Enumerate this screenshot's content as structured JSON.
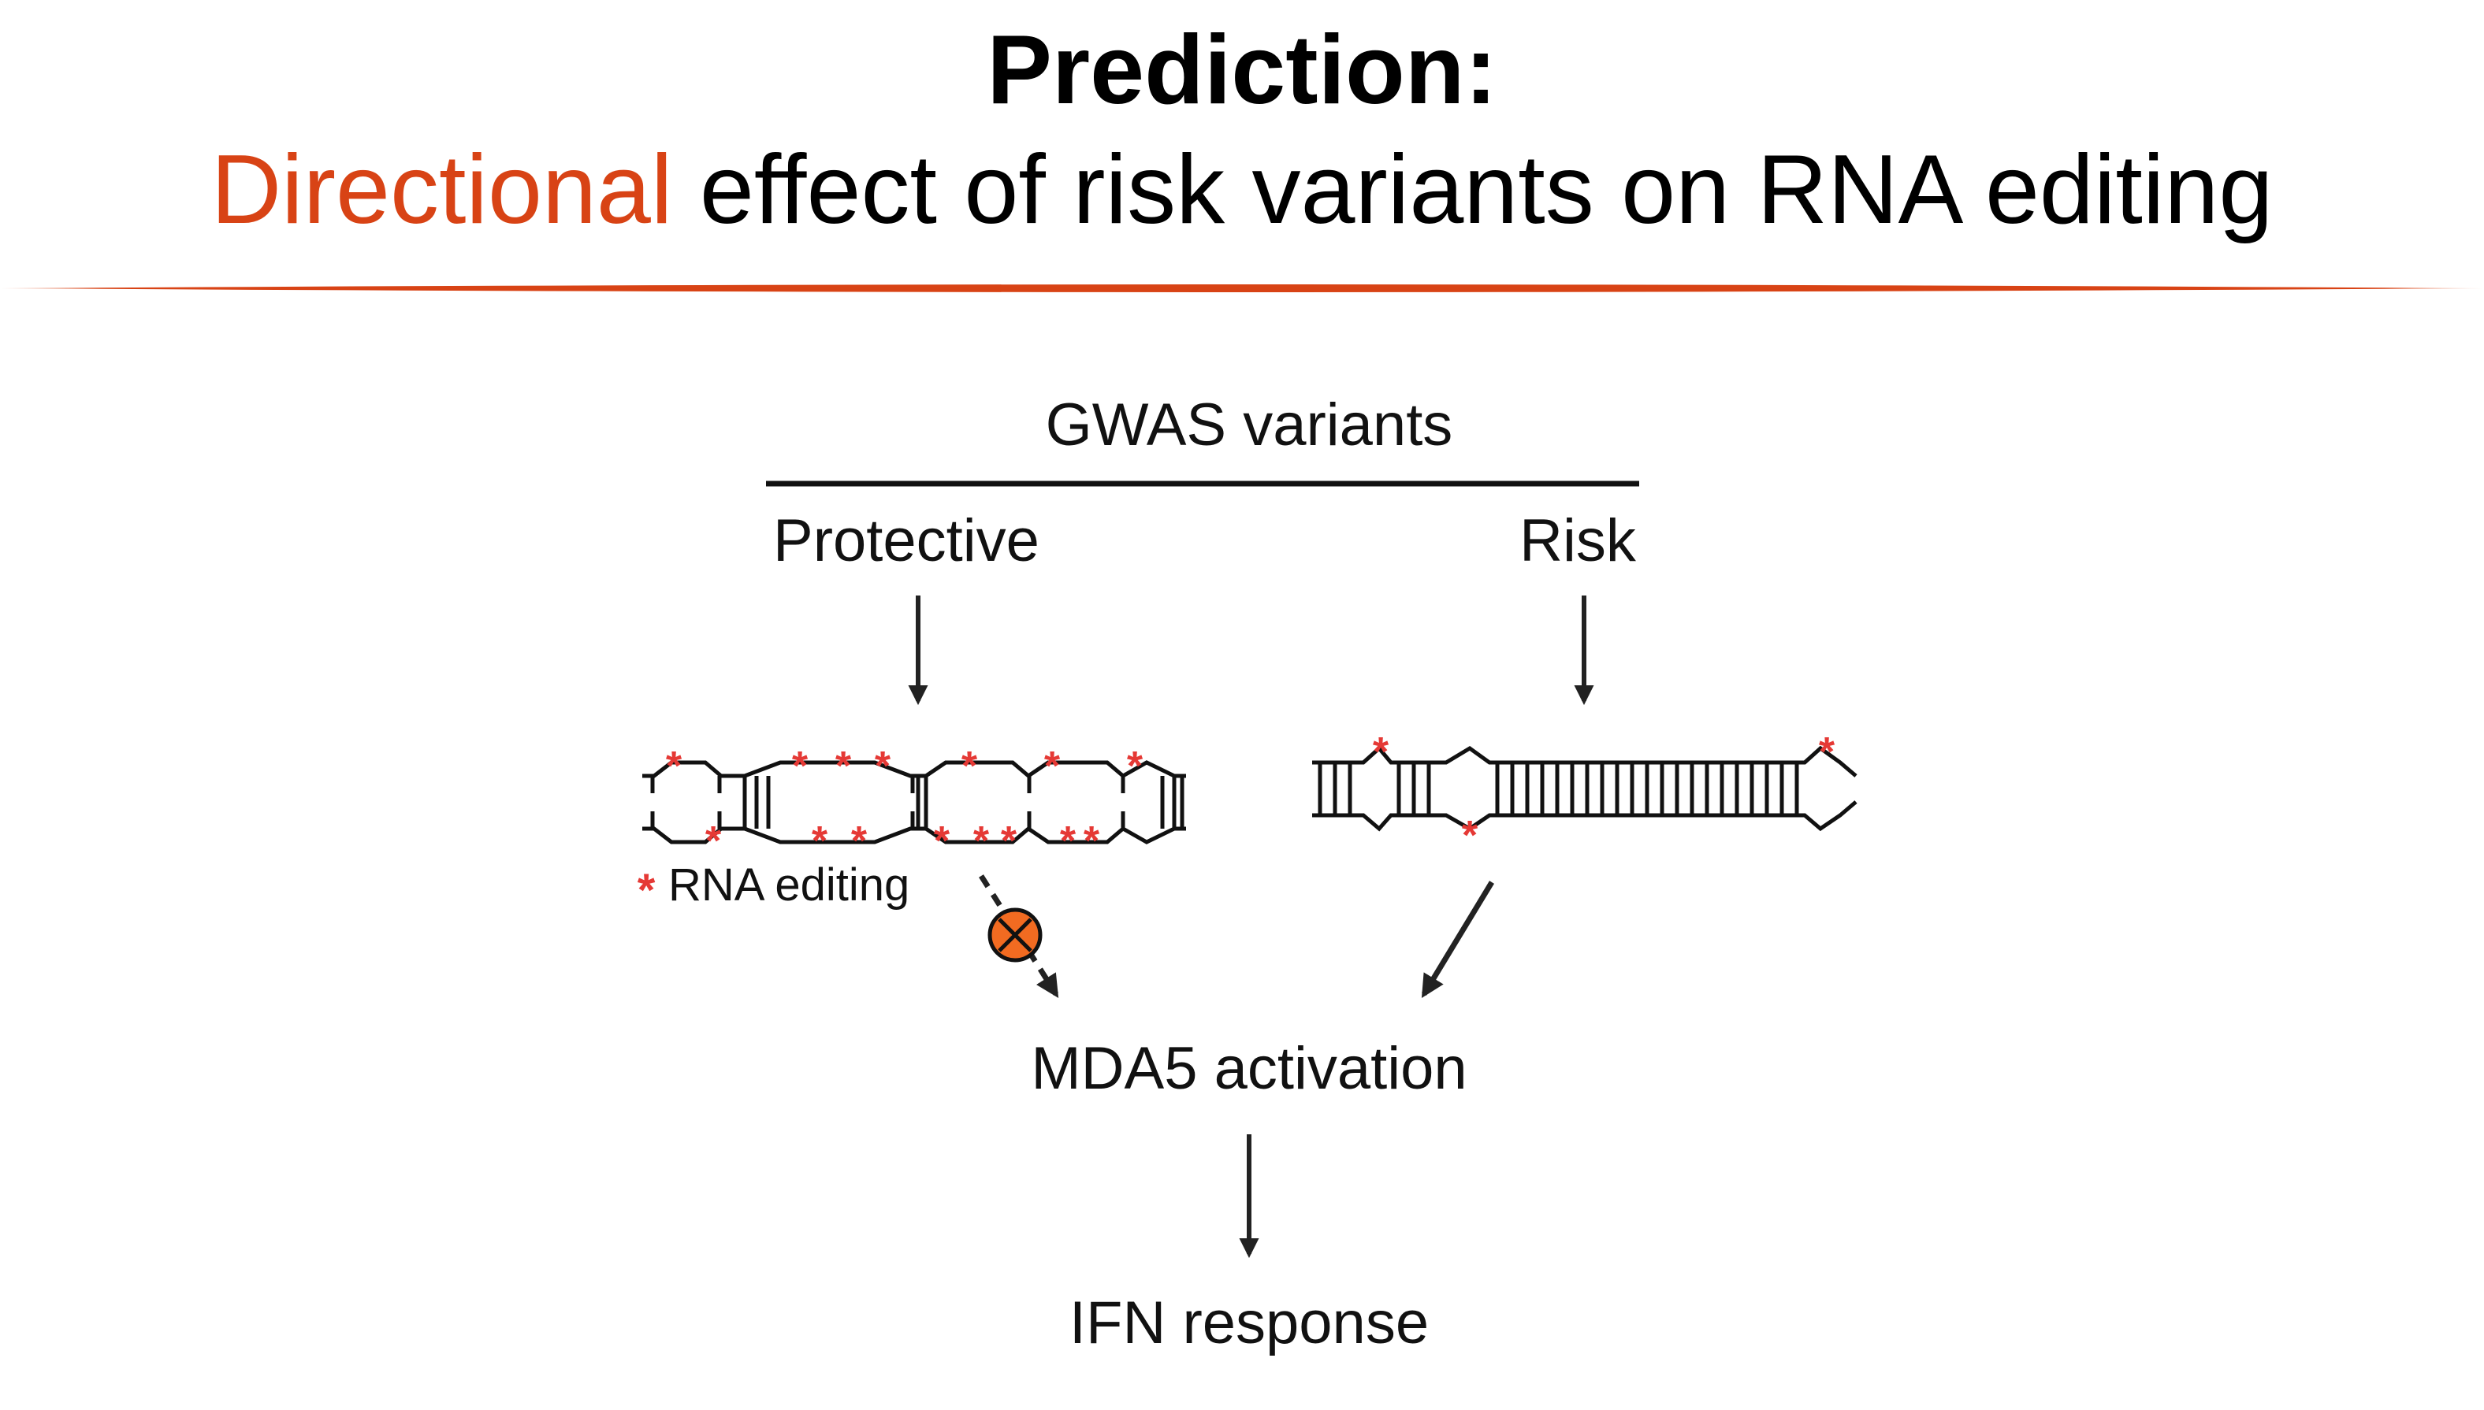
{
  "slide": {
    "title_line1_bold": "Prediction",
    "title_line1_colon": ":",
    "title_line2_highlight": "Directional",
    "title_line2_rest": " effect of risk variants on RNA editing",
    "accent_color": "#d84315"
  },
  "diagram": {
    "header": "GWAS variants",
    "protective_label": "Protective",
    "risk_label": "Risk",
    "legend_symbol": "*",
    "legend_label": "RNA editing",
    "mda5_label": "MDA5 activation",
    "ifn_label": "IFN response",
    "edit_mark_color": "#e53935",
    "inhibit_icon_color": "#f26b21"
  }
}
